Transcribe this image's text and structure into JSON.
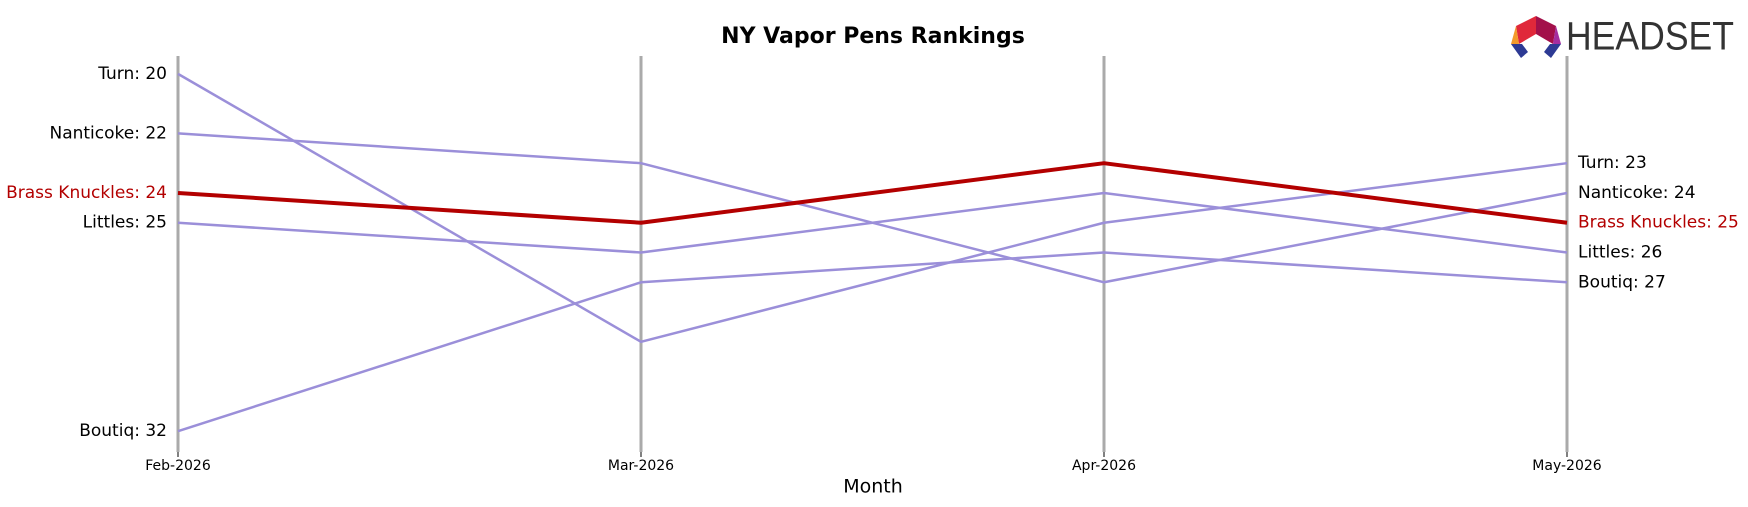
{
  "chart_data": {
    "type": "line",
    "title": "NY Vapor Pens Rankings",
    "xlabel": "Month",
    "logo": "HEADSET",
    "categories": [
      "Feb-2026",
      "Mar-2026",
      "Apr-2026",
      "May-2026"
    ],
    "ylim": [
      32.7,
      19.4
    ],
    "series": [
      {
        "name": "Turn",
        "color": "#9b8fd9",
        "label_color": "#000000",
        "values": [
          20,
          29,
          25,
          23
        ],
        "value_labels": [
          "Turn: 20",
          null,
          null,
          "Turn: 23"
        ]
      },
      {
        "name": "Nanticoke",
        "color": "#9b8fd9",
        "label_color": "#000000",
        "values": [
          22,
          23,
          27,
          24
        ],
        "value_labels": [
          "Nanticoke: 22",
          null,
          null,
          "Nanticoke: 24"
        ]
      },
      {
        "name": "Littles",
        "color": "#9b8fd9",
        "label_color": "#000000",
        "values": [
          25,
          26,
          24,
          26
        ],
        "value_labels": [
          "Littles: 25",
          null,
          null,
          "Littles: 26"
        ]
      },
      {
        "name": "Boutiq",
        "color": "#9b8fd9",
        "label_color": "#000000",
        "values": [
          32,
          27,
          26,
          27
        ],
        "value_labels": [
          "Boutiq: 32",
          null,
          null,
          "Boutiq: 27"
        ]
      },
      {
        "name": "Brass Knuckles",
        "color": "#b30000",
        "label_color": "#b30000",
        "values": [
          24,
          25,
          23,
          25
        ],
        "value_labels": [
          "Brass Knuckles: 24",
          null,
          null,
          "Brass Knuckles: 25"
        ]
      }
    ]
  }
}
